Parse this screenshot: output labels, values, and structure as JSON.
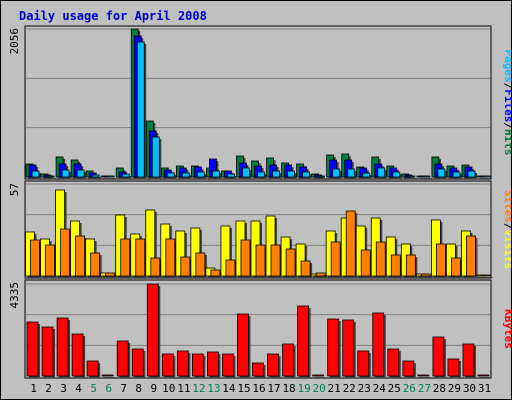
{
  "chart_data": {
    "type": "bar",
    "title": "Daily usage for April 2008",
    "categories": [
      "1",
      "2",
      "3",
      "4",
      "5",
      "6",
      "7",
      "8",
      "9",
      "10",
      "11",
      "12",
      "13",
      "14",
      "15",
      "16",
      "17",
      "18",
      "19",
      "20",
      "21",
      "22",
      "23",
      "24",
      "25",
      "26",
      "27",
      "28",
      "29",
      "30",
      "31"
    ],
    "weekend_days": [
      "5",
      "6",
      "12",
      "13",
      "19",
      "20",
      "26",
      "27"
    ],
    "panels": [
      {
        "name": "hits-files-pages",
        "ymax_label": "2056",
        "ylim": [
          0,
          2056
        ],
        "series": [
          {
            "name": "Hits",
            "color": "#008040",
            "values": [
              180,
              40,
              280,
              230,
              90,
              0,
              120,
              2056,
              780,
              120,
              150,
              150,
              130,
              90,
              290,
              220,
              260,
              200,
              180,
              40,
              300,
              320,
              140,
              280,
              150,
              40,
              0,
              280,
              150,
              170,
              0
            ]
          },
          {
            "name": "Files",
            "color": "#0000ff",
            "values": [
              170,
              30,
              180,
              180,
              60,
              0,
              70,
              1960,
              640,
              100,
              130,
              140,
              250,
              80,
              200,
              150,
              170,
              170,
              140,
              30,
              240,
              230,
              120,
              180,
              130,
              30,
              0,
              180,
              120,
              140,
              0
            ]
          },
          {
            "name": "Pages",
            "color": "#00c0ff",
            "values": [
              90,
              10,
              100,
              100,
              30,
              0,
              40,
              1880,
              560,
              50,
              60,
              70,
              80,
              40,
              130,
              70,
              80,
              80,
              70,
              10,
              110,
              110,
              60,
              120,
              70,
              10,
              0,
              110,
              70,
              80,
              0
            ]
          }
        ]
      },
      {
        "name": "visits-sites",
        "ymax_label": "57",
        "ylim": [
          0,
          57
        ],
        "series": [
          {
            "name": "Visits",
            "color": "#ffff00",
            "values": [
              27,
              23,
              53,
              34,
              23,
              2,
              38,
              26,
              41,
              32,
              28,
              30,
              5,
              31,
              34,
              34,
              37,
              24,
              20,
              1,
              28,
              36,
              31,
              36,
              24,
              20,
              1,
              35,
              20,
              28,
              0
            ]
          },
          {
            "name": "Sites",
            "color": "#ff8000",
            "values": [
              22,
              19,
              29,
              25,
              14,
              2,
              23,
              23,
              11,
              23,
              12,
              14,
              4,
              10,
              22,
              19,
              19,
              17,
              9,
              2,
              21,
              40,
              16,
              21,
              13,
              13,
              1,
              20,
              11,
              25,
              0
            ]
          }
        ]
      },
      {
        "name": "kbytes",
        "ymax_label": "4335",
        "ylim": [
          0,
          4335
        ],
        "series": [
          {
            "name": "KBytes",
            "color": "#ff0000",
            "values": [
              2550,
              2300,
              2750,
              2000,
              720,
              0,
              1650,
              1250,
              4335,
              1050,
              1200,
              1050,
              1150,
              1050,
              2900,
              600,
              1050,
              1500,
              3300,
              0,
              2700,
              2650,
              1200,
              2950,
              1250,
              700,
              0,
              1850,
              800,
              1500,
              0
            ]
          }
        ]
      }
    ],
    "right_labels": [
      {
        "parts": [
          {
            "text": "Pages",
            "color": "#00c0ff"
          },
          {
            "text": "/",
            "color": "#000000"
          },
          {
            "text": "Files",
            "color": "#0000ff"
          },
          {
            "text": "/",
            "color": "#000000"
          },
          {
            "text": "Hits",
            "color": "#008040"
          }
        ]
      },
      {
        "parts": [
          {
            "text": "Sites",
            "color": "#ff8000"
          },
          {
            "text": "/",
            "color": "#000000"
          },
          {
            "text": "Visits",
            "color": "#ffff00"
          }
        ]
      },
      {
        "parts": [
          {
            "text": "KBytes",
            "color": "#ff0000"
          }
        ]
      }
    ],
    "colors": {
      "background": "#c0c0c0",
      "plot_background": "#c0c0c0",
      "grid": "#808080",
      "weekday_label": "#000000",
      "weekend_label": "#00805a",
      "title": "#0000cc"
    }
  }
}
